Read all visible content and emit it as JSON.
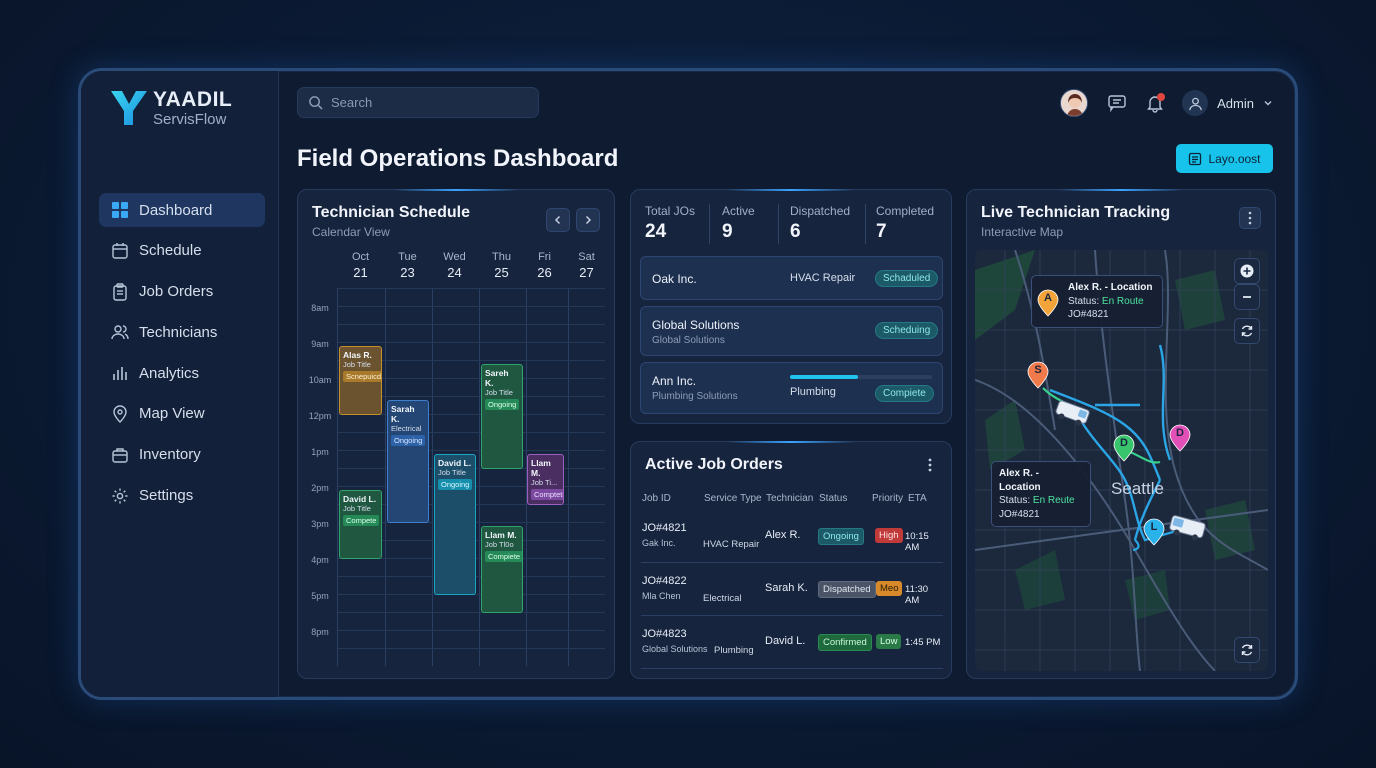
{
  "app": {
    "brand": "YAADIL",
    "product": "ServisFlow"
  },
  "sidebar": {
    "items": [
      {
        "label": "Dashboard",
        "icon": "dashboard-icon"
      },
      {
        "label": "Schedule",
        "icon": "calendar-icon"
      },
      {
        "label": "Job Orders",
        "icon": "clipboard-icon"
      },
      {
        "label": "Technicians",
        "icon": "users-icon"
      },
      {
        "label": "Analytics",
        "icon": "bar-chart-icon"
      },
      {
        "label": "Map View",
        "icon": "map-pin-icon"
      },
      {
        "label": "Inventory",
        "icon": "box-icon"
      },
      {
        "label": "Settings",
        "icon": "gear-icon"
      }
    ]
  },
  "header": {
    "search_placeholder": "Search",
    "user_label": "Admin",
    "page_title": "Field Operations Dashboard",
    "layout_button": "Layo.oost"
  },
  "schedule": {
    "title": "Technician Schedule",
    "subtitle": "Calendar View",
    "days": [
      {
        "name": "Oct",
        "num": "21"
      },
      {
        "name": "Tue",
        "num": "23"
      },
      {
        "name": "Wed",
        "num": "24"
      },
      {
        "name": "Thu",
        "num": "25"
      },
      {
        "name": "Fri",
        "num": "26"
      },
      {
        "name": "Sat",
        "num": "27"
      }
    ],
    "times": [
      "8am",
      "9am",
      "10am",
      "12pm",
      "1pm",
      "2pm",
      "3pm",
      "4pm",
      "5pm",
      "8pm"
    ],
    "events": [
      {
        "name": "Alas R.",
        "title": "Job Title",
        "status": "Scnepuicd",
        "color": "#c58f2d"
      },
      {
        "name": "Sarah K.",
        "title": "Electrical",
        "status": "Ongoing",
        "color": "#3f7fd0"
      },
      {
        "name": "David L.",
        "title": "Job Title",
        "status": "Ongoing",
        "color": "#1aa7c6"
      },
      {
        "name": "Sareh K.",
        "title": "Job Title",
        "status": "Ongoing",
        "color": "#2fa56b"
      },
      {
        "name": "Llam M.",
        "title": "Job Ti...",
        "status": "Comptetr",
        "color": "#9b5fc0"
      },
      {
        "name": "David L.",
        "title": "Job Title",
        "status": "Compete",
        "color": "#2fa56b"
      },
      {
        "name": "Llam M.",
        "title": "Job Tl0o",
        "status": "Compiete",
        "color": "#2fa56b"
      }
    ]
  },
  "stats": {
    "items": [
      {
        "label": "Total JOs",
        "value": "24"
      },
      {
        "label": "Active",
        "value": "9"
      },
      {
        "label": "Dispatched",
        "value": "6"
      },
      {
        "label": "Completed",
        "value": "7"
      }
    ],
    "clients": [
      {
        "name": "Oak Inc.",
        "service": "HVAC Repair",
        "status": "Schaduled"
      },
      {
        "name": "Global Solutions",
        "sub": "Global Solutions",
        "status": "Scheduing"
      },
      {
        "name": "Ann Inc.",
        "sub": "Plumbing Solutions",
        "service": "Plumbing",
        "status": "Compiete",
        "progress": 0.48
      }
    ]
  },
  "jobs": {
    "title": "Active Job Orders",
    "headers": [
      "Job ID",
      "Service Type",
      "Technician",
      "Status",
      "Priority",
      "ETA"
    ],
    "rows": [
      {
        "id": "JO#4821",
        "client": "Gak Inc.",
        "service": "HVAC Repair",
        "tech": "Alex R.",
        "status": "Ongoing",
        "priority": "High",
        "eta": "10:15 AM"
      },
      {
        "id": "JO#4822",
        "client": "Mla Chen",
        "service": "Electrical",
        "tech": "Sarah K.",
        "status": "Dispatched",
        "priority": "Meo",
        "eta": "11:30 AM"
      },
      {
        "id": "JO#4823",
        "client": "Global Solutions",
        "service": "Plumbing",
        "tech": "David L.",
        "status": "Confirmed",
        "priority": "Low",
        "eta": "1:45 PM"
      }
    ]
  },
  "map": {
    "title": "Live Technician Tracking",
    "subtitle": "Interactive Map",
    "city": "Seattle",
    "tooltips": [
      {
        "name": "Alex R. - Location",
        "status_label": "Status:",
        "status": "En Route",
        "job": "JO#4821"
      },
      {
        "name": "Alex R. - Location",
        "status_label": "Status:",
        "status": "En Reute",
        "job": "JO#4821"
      }
    ],
    "pins": [
      {
        "label": "A",
        "color": "#f2a33a"
      },
      {
        "label": "S",
        "color": "#f07a4a"
      },
      {
        "label": "D",
        "color": "#37c46c"
      },
      {
        "label": "D",
        "color": "#e24fb7"
      },
      {
        "label": "L",
        "color": "#2ab3ea"
      }
    ]
  }
}
